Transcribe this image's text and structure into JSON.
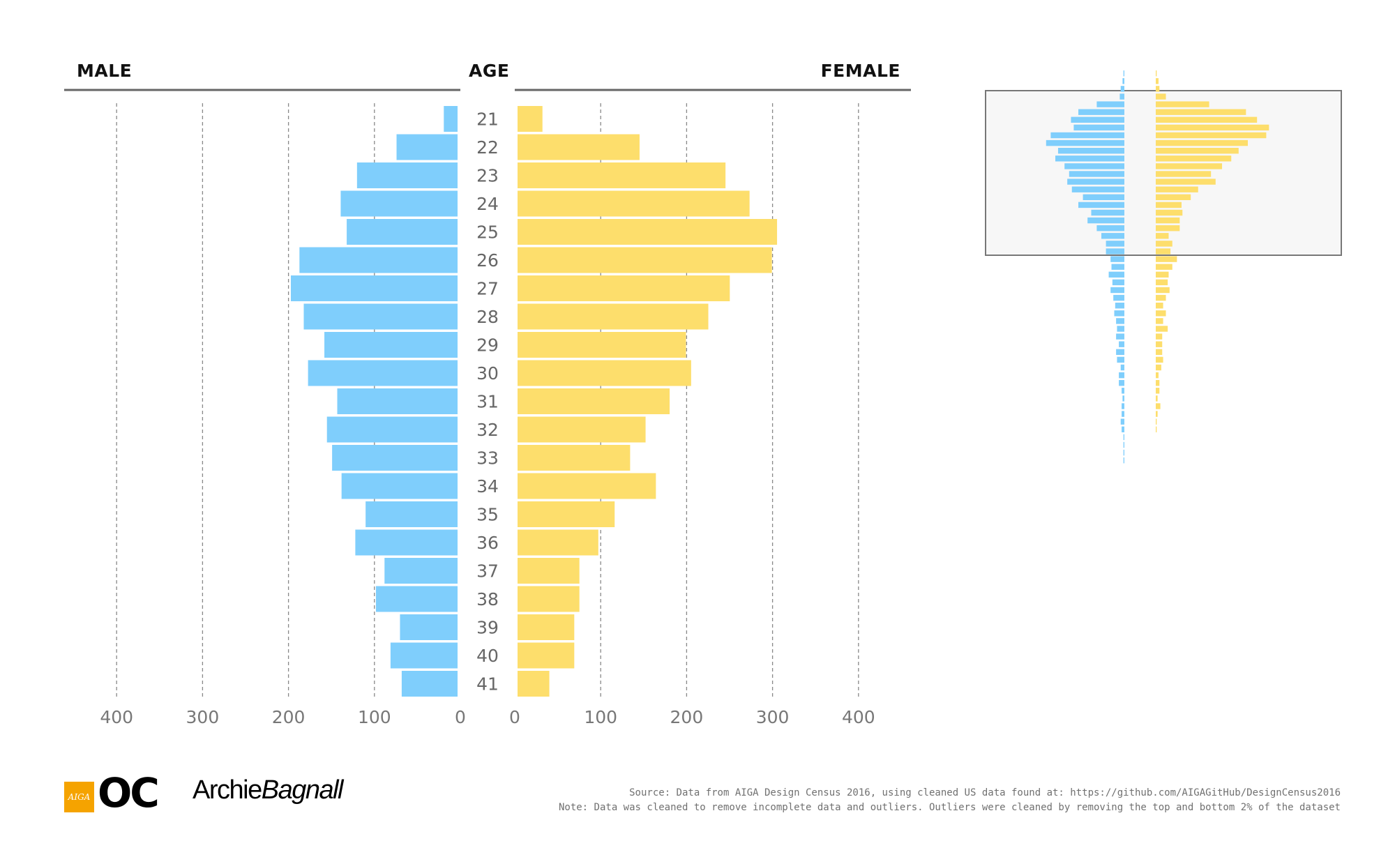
{
  "headers": {
    "male": "MALE",
    "age": "AGE",
    "female": "FEMALE"
  },
  "chart_data": {
    "type": "bar",
    "subtype": "population-pyramid",
    "categories": [
      "21",
      "22",
      "23",
      "24",
      "25",
      "26",
      "27",
      "28",
      "29",
      "30",
      "31",
      "32",
      "33",
      "34",
      "35",
      "36",
      "37",
      "38",
      "39",
      "40",
      "41"
    ],
    "series": [
      {
        "name": "Male",
        "color": "#7fcefc",
        "values": [
          16,
          71,
          117,
          136,
          129,
          184,
          194,
          179,
          155,
          174,
          140,
          152,
          146,
          135,
          107,
          119,
          85,
          95,
          67,
          78,
          65
        ]
      },
      {
        "name": "Female",
        "color": "#fdde6c",
        "values": [
          29,
          142,
          242,
          270,
          302,
          296,
          247,
          222,
          196,
          202,
          177,
          149,
          131,
          161,
          113,
          94,
          72,
          72,
          66,
          66,
          37
        ]
      }
    ],
    "xlim": [
      0,
      400
    ],
    "xticks": [
      "400",
      "300",
      "200",
      "100",
      "0"
    ],
    "xticks_female": [
      "0",
      "100",
      "200",
      "300",
      "400"
    ],
    "grid": "dashed vertical at 100, 200, 300, 400",
    "inset": {
      "description": "full age distribution, highlighted region marks ages 21-41",
      "male_values": [
        1,
        2,
        4,
        5,
        30,
        50,
        58,
        55,
        80,
        85,
        72,
        75,
        65,
        60,
        62,
        57,
        45,
        50,
        36,
        40,
        30,
        25,
        20,
        20,
        15,
        14,
        17,
        13,
        15,
        12,
        10,
        11,
        9,
        8,
        9,
        6,
        9,
        8,
        4,
        6,
        6,
        3,
        2,
        3,
        3,
        4,
        3,
        1,
        1,
        1,
        1
      ],
      "female_values": [
        1,
        3,
        4,
        11,
        58,
        98,
        110,
        123,
        120,
        100,
        90,
        82,
        72,
        60,
        65,
        46,
        38,
        28,
        29,
        26,
        26,
        14,
        18,
        16,
        23,
        18,
        14,
        13,
        15,
        11,
        8,
        11,
        8,
        13,
        7,
        7,
        7,
        8,
        6,
        3,
        4,
        4,
        2,
        5,
        2,
        1,
        1
      ]
    }
  },
  "footer": {
    "source": "Source: Data from AIGA Design Census 2016, using cleaned US data found at: https://github.com/AIGAGitHub/DesignCensus2016",
    "note": "Note: Data was cleaned to remove incomplete data and outliers. Outliers were cleaned by removing the top and bottom 2% of the dataset"
  },
  "logos": {
    "aiga": "AIGA",
    "oc": "OC",
    "archie": "Archie",
    "bagnall": "Bagnall"
  }
}
